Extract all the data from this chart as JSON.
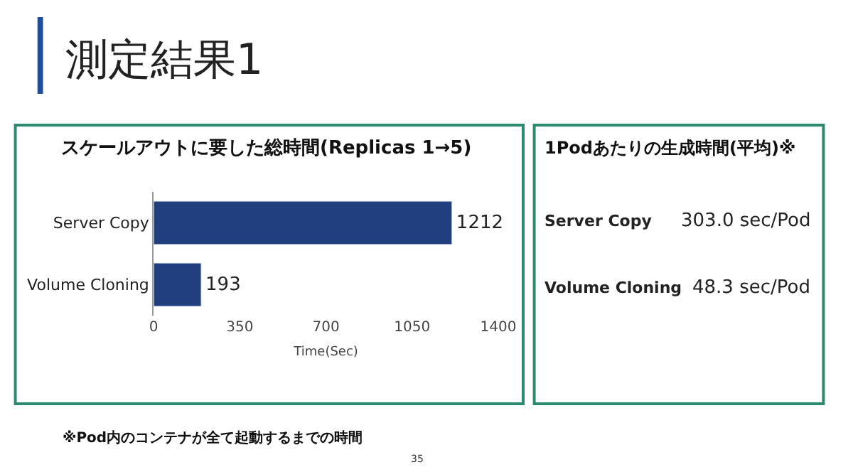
{
  "chart_data": [
    {
      "type": "bar",
      "orientation": "horizontal",
      "title": "スケールアウトに要した総時間(Replicas 1→5)",
      "xlabel": "Time(Sec)",
      "categories": [
        "Server Copy",
        "Volume Cloning"
      ],
      "values": [
        1212,
        193
      ],
      "color": "#213f7e",
      "xlim": [
        0,
        1400
      ],
      "xticks": [
        0,
        350,
        700,
        1050,
        1400
      ],
      "grid": false,
      "data_labels": true,
      "annotations": [
        "測定結果1",
        "※Pod内のコンテナが全て起動するまでの時間",
        "35"
      ]
    },
    {
      "type": "other",
      "title": "1Podあたりの生成時間(平均)※",
      "categories": [
        "Server Copy",
        "Volume Cloning"
      ],
      "value_labels": [
        "303.0 sec/Pod",
        "48.3 sec/Pod"
      ]
    }
  ]
}
